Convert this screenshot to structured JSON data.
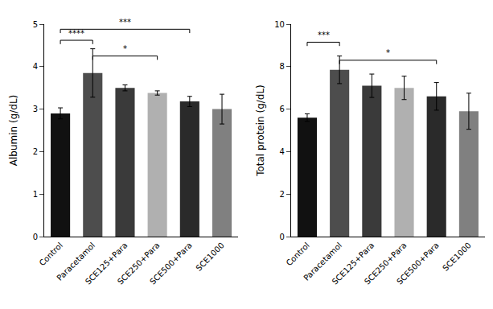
{
  "chart_data": [
    {
      "type": "bar",
      "categories": [
        "Control",
        "Paracetamol",
        "SCE125+Para",
        "SCE250+Para",
        "SCE500+Para",
        "SCE1000"
      ],
      "values": [
        2.9,
        3.85,
        3.5,
        3.38,
        3.18,
        3.0
      ],
      "errors": [
        0.13,
        0.57,
        0.07,
        0.05,
        0.12,
        0.35
      ],
      "colors": [
        "#111111",
        "#4d4d4d",
        "#3a3a3a",
        "#b0b0b0",
        "#2a2a2a",
        "#808080"
      ],
      "ylabel": "Albumin (g/dL)",
      "ylim": [
        0,
        5
      ],
      "yticks": [
        0,
        1,
        2,
        3,
        4,
        5
      ],
      "grid": false,
      "annotations": [
        {
          "from": "Control",
          "to": "Paracetamol",
          "y": 4.62,
          "label": "****"
        },
        {
          "from": "Paracetamol",
          "to": "SCE250+Para",
          "y": 4.25,
          "label": "*"
        },
        {
          "from": "Control",
          "to": "SCE500+Para",
          "y": 4.88,
          "label": "***"
        }
      ]
    },
    {
      "type": "bar",
      "categories": [
        "Control",
        "Paracetamol",
        "SCE125+Para",
        "SCE250+Para",
        "SCE500+Para",
        "SCE1000"
      ],
      "values": [
        5.6,
        7.85,
        7.1,
        7.0,
        6.6,
        5.9
      ],
      "errors": [
        0.18,
        0.65,
        0.55,
        0.55,
        0.65,
        0.85
      ],
      "colors": [
        "#111111",
        "#4d4d4d",
        "#3a3a3a",
        "#b0b0b0",
        "#2a2a2a",
        "#808080"
      ],
      "ylabel": "Total protein (g/dL)",
      "ylim": [
        0,
        10
      ],
      "yticks": [
        0,
        2,
        4,
        6,
        8,
        10
      ],
      "grid": false,
      "annotations": [
        {
          "from": "Control",
          "to": "Paracetamol",
          "y": 9.15,
          "label": "***"
        },
        {
          "from": "Paracetamol",
          "to": "SCE500+Para",
          "y": 8.3,
          "label": "*"
        }
      ]
    }
  ]
}
